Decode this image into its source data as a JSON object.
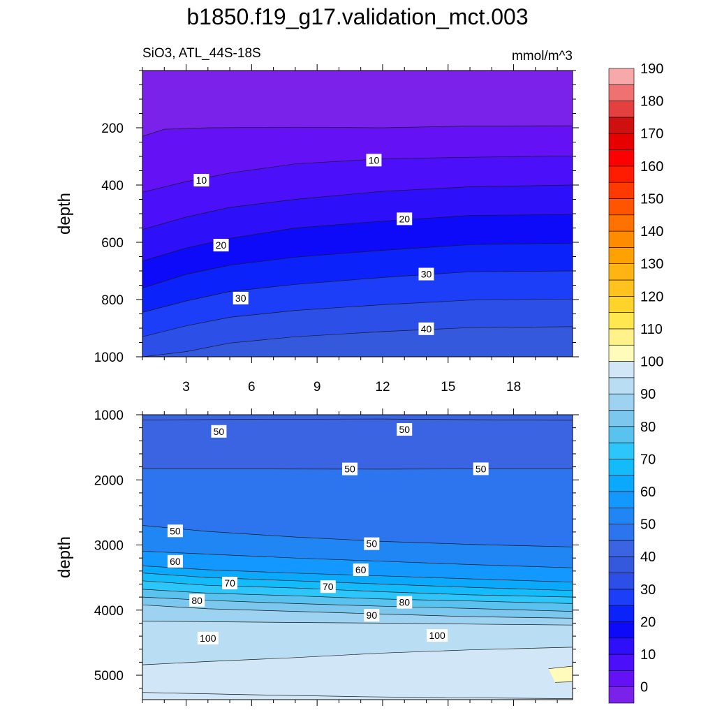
{
  "chart_data": {
    "type": "contour",
    "title": "b1850.f19_g17.validation_mct.003",
    "variable_label": "SiO3, ATL_44S-18S",
    "units_label": "mmol/m^3",
    "colorbar": {
      "levels": [
        0,
        5,
        10,
        15,
        20,
        25,
        30,
        35,
        40,
        45,
        50,
        55,
        60,
        65,
        70,
        75,
        80,
        85,
        90,
        95,
        100,
        105,
        110,
        115,
        120,
        125,
        130,
        135,
        140,
        145,
        150,
        155,
        160,
        165,
        170,
        175,
        180,
        185,
        190,
        195
      ],
      "tick_labels": [
        "0",
        "10",
        "20",
        "30",
        "40",
        "50",
        "60",
        "70",
        "80",
        "90",
        "100",
        "110",
        "120",
        "130",
        "140",
        "150",
        "160",
        "170",
        "180",
        "190"
      ],
      "colors": [
        "#7b22ea",
        "#6412f5",
        "#4b0ff9",
        "#2d0ffa",
        "#0d0afa",
        "#0c22fa",
        "#1d3ef8",
        "#2b4fe7",
        "#3559dc",
        "#3a64e2",
        "#2d74ef",
        "#1f86f3",
        "#1298ff",
        "#0aa9fb",
        "#14bbfb",
        "#2cc6fb",
        "#5ac2ef",
        "#7bc7ee",
        "#9dd3f1",
        "#b9def4",
        "#d1e7f7",
        "#fffbbb",
        "#fff28b",
        "#ffe84f",
        "#ffd42a",
        "#ffc21e",
        "#ffb414",
        "#ffa100",
        "#ff8c00",
        "#ff7200",
        "#ff5400",
        "#ff3a00",
        "#ff1c00",
        "#ff0000",
        "#e60000",
        "#cf1010",
        "#e44040",
        "#ef7171",
        "#f7a8a8"
      ]
    },
    "panels": [
      {
        "name": "upper",
        "ylabel": "depth",
        "xlim": [
          1,
          20.7
        ],
        "ylim": [
          0,
          1000
        ],
        "x_ticks": [
          3,
          6,
          9,
          12,
          15,
          18
        ],
        "x_tick_labels": [
          "3",
          "6",
          "9",
          "12",
          "15",
          "18"
        ],
        "y_ticks": [
          200,
          400,
          600,
          800,
          1000
        ],
        "y_tick_labels": [
          "200",
          "400",
          "600",
          "800",
          "1000"
        ],
        "isolines_depth": [
          {
            "value": 5,
            "pts": [
              [
                1,
                230
              ],
              [
                2,
                205
              ],
              [
                4,
                200
              ],
              [
                8,
                198
              ],
              [
                12,
                200
              ],
              [
                16,
                194
              ],
              [
                20.7,
                193
              ]
            ]
          },
          {
            "value": 10,
            "pts": [
              [
                1,
                425
              ],
              [
                3,
                388
              ],
              [
                5,
                358
              ],
              [
                8,
                326
              ],
              [
                12,
                308
              ],
              [
                16,
                303
              ],
              [
                20.7,
                298
              ]
            ]
          },
          {
            "value": 15,
            "pts": [
              [
                1,
                555
              ],
              [
                3,
                512
              ],
              [
                5,
                478
              ],
              [
                8,
                450
              ],
              [
                12,
                422
              ],
              [
                16,
                406
              ],
              [
                20.7,
                400
              ]
            ]
          },
          {
            "value": 20,
            "pts": [
              [
                1,
                665
              ],
              [
                3,
                620
              ],
              [
                5,
                586
              ],
              [
                8,
                550
              ],
              [
                12,
                526
              ],
              [
                16,
                506
              ],
              [
                20.7,
                503
              ]
            ]
          },
          {
            "value": 25,
            "pts": [
              [
                1,
                760
              ],
              [
                3,
                712
              ],
              [
                5,
                680
              ],
              [
                8,
                652
              ],
              [
                12,
                628
              ],
              [
                16,
                608
              ],
              [
                20.7,
                603
              ]
            ]
          },
          {
            "value": 30,
            "pts": [
              [
                1,
                845
              ],
              [
                3,
                805
              ],
              [
                5,
                772
              ],
              [
                8,
                747
              ],
              [
                12,
                723
              ],
              [
                16,
                703
              ],
              [
                20.7,
                700
              ]
            ]
          },
          {
            "value": 35,
            "pts": [
              [
                1,
                930
              ],
              [
                3,
                892
              ],
              [
                5,
                862
              ],
              [
                8,
                838
              ],
              [
                12,
                818
              ],
              [
                16,
                802
              ],
              [
                20.7,
                798
              ]
            ]
          },
          {
            "value": 40,
            "pts": [
              [
                1,
                1000
              ],
              [
                3,
                982
              ],
              [
                5,
                952
              ],
              [
                8,
                930
              ],
              [
                12,
                912
              ],
              [
                16,
                898
              ],
              [
                20.7,
                895
              ]
            ]
          }
        ],
        "contour_labels": [
          {
            "text": "10",
            "x": 3.7,
            "y": 383
          },
          {
            "text": "10",
            "x": 11.6,
            "y": 313
          },
          {
            "text": "20",
            "x": 4.6,
            "y": 610
          },
          {
            "text": "20",
            "x": 13.0,
            "y": 518
          },
          {
            "text": "30",
            "x": 5.5,
            "y": 795
          },
          {
            "text": "30",
            "x": 14.0,
            "y": 711
          },
          {
            "text": "40",
            "x": 14.0,
            "y": 902
          }
        ]
      },
      {
        "name": "lower",
        "ylabel": "depth",
        "xlim": [
          1,
          20.7
        ],
        "ylim": [
          1000,
          5375
        ],
        "x_ticks": [
          3,
          6,
          9,
          12,
          15,
          18
        ],
        "x_tick_labels": [
          "",
          "",
          "",
          "",
          "",
          ""
        ],
        "y_ticks": [
          1000,
          2000,
          3000,
          4000,
          5000
        ],
        "y_tick_labels": [
          "1000",
          "2000",
          "3000",
          "4000",
          "5000"
        ],
        "top_fill_value": 45,
        "isolines_depth": [
          {
            "value": 45,
            "pts": [
              [
                1,
                1080
              ],
              [
                6,
                1070
              ],
              [
                12,
                1065
              ],
              [
                18,
                1080
              ],
              [
                20.7,
                1085
              ]
            ]
          },
          {
            "value": 50,
            "pts": [
              [
                1,
                1830
              ],
              [
                6,
                1832
              ],
              [
                12,
                1835
              ],
              [
                18,
                1830
              ],
              [
                20.7,
                1830
              ]
            ]
          },
          {
            "value": 55,
            "pts": [
              [
                1,
                2700
              ],
              [
                4,
                2792
              ],
              [
                8,
                2878
              ],
              [
                12,
                2945
              ],
              [
                16,
                2990
              ],
              [
                20.7,
                3030
              ]
            ]
          },
          {
            "value": 60,
            "pts": [
              [
                1,
                3095
              ],
              [
                4,
                3140
              ],
              [
                8,
                3200
              ],
              [
                12,
                3250
              ],
              [
                16,
                3300
              ],
              [
                20.7,
                3350
              ]
            ]
          },
          {
            "value": 65,
            "pts": [
              [
                1,
                3320
              ],
              [
                4,
                3380
              ],
              [
                8,
                3432
              ],
              [
                12,
                3475
              ],
              [
                16,
                3520
              ],
              [
                20.7,
                3570
              ]
            ]
          },
          {
            "value": 70,
            "pts": [
              [
                1,
                3430
              ],
              [
                4,
                3500
              ],
              [
                8,
                3550
              ],
              [
                12,
                3600
              ],
              [
                16,
                3650
              ],
              [
                20.7,
                3700
              ]
            ]
          },
          {
            "value": 75,
            "pts": [
              [
                1,
                3550
              ],
              [
                4,
                3620
              ],
              [
                8,
                3660
              ],
              [
                12,
                3718
              ],
              [
                16,
                3765
              ],
              [
                20.7,
                3800
              ]
            ]
          },
          {
            "value": 80,
            "pts": [
              [
                1,
                3680
              ],
              [
                4,
                3740
              ],
              [
                8,
                3780
              ],
              [
                12,
                3830
              ],
              [
                16,
                3860
              ],
              [
                20.7,
                3900
              ]
            ]
          },
          {
            "value": 85,
            "pts": [
              [
                1,
                3800
              ],
              [
                4,
                3850
              ],
              [
                8,
                3900
              ],
              [
                12,
                3940
              ],
              [
                16,
                3975
              ],
              [
                20.7,
                4020
              ]
            ]
          },
          {
            "value": 90,
            "pts": [
              [
                1,
                3920
              ],
              [
                4,
                3980
              ],
              [
                8,
                4020
              ],
              [
                12,
                4060
              ],
              [
                16,
                4100
              ],
              [
                20.7,
                4125
              ]
            ]
          },
          {
            "value": 95,
            "pts": [
              [
                1,
                4170
              ],
              [
                4,
                4178
              ],
              [
                8,
                4190
              ],
              [
                12,
                4200
              ],
              [
                16,
                4215
              ],
              [
                20.7,
                4230
              ]
            ]
          },
          {
            "value": 100,
            "pts": [
              [
                1,
                4840
              ],
              [
                4,
                4790
              ],
              [
                8,
                4730
              ],
              [
                12,
                4660
              ],
              [
                16,
                4610
              ],
              [
                20.7,
                4570
              ]
            ]
          },
          {
            "value": 105,
            "pts": [
              [
                19.6,
                4900
              ],
              [
                20.7,
                4860
              ],
              [
                20.7,
                5100
              ],
              [
                19.9,
                5110
              ]
            ]
          },
          {
            "value": 100,
            "pts": [
              [
                1,
                5265
              ],
              [
                6,
                5300
              ],
              [
                11,
                5330
              ],
              [
                15,
                5345
              ],
              [
                20.7,
                5360
              ]
            ]
          }
        ],
        "contour_labels": [
          {
            "text": "50",
            "x": 4.5,
            "y": 1255
          },
          {
            "text": "50",
            "x": 13.0,
            "y": 1225
          },
          {
            "text": "50",
            "x": 10.5,
            "y": 1832
          },
          {
            "text": "50",
            "x": 16.5,
            "y": 1830
          },
          {
            "text": "50",
            "x": 2.5,
            "y": 2783
          },
          {
            "text": "50",
            "x": 11.5,
            "y": 2980
          },
          {
            "text": "60",
            "x": 2.5,
            "y": 3250
          },
          {
            "text": "60",
            "x": 11.0,
            "y": 3380
          },
          {
            "text": "70",
            "x": 5.0,
            "y": 3585
          },
          {
            "text": "70",
            "x": 9.5,
            "y": 3640
          },
          {
            "text": "80",
            "x": 3.5,
            "y": 3850
          },
          {
            "text": "80",
            "x": 13.0,
            "y": 3880
          },
          {
            "text": "90",
            "x": 11.5,
            "y": 4080
          },
          {
            "text": "100",
            "x": 4.0,
            "y": 4430
          },
          {
            "text": "100",
            "x": 14.5,
            "y": 4390
          }
        ]
      }
    ]
  }
}
